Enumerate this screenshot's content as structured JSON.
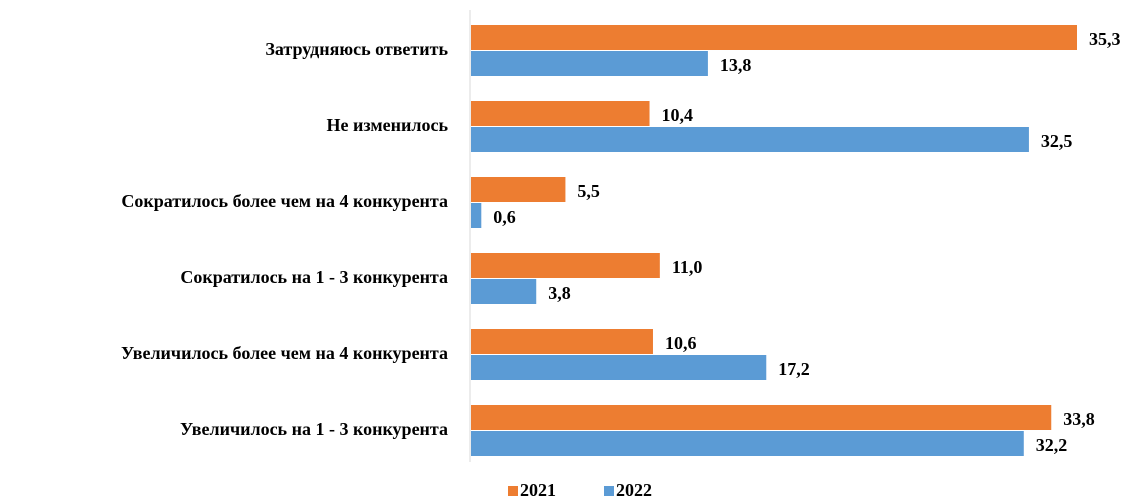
{
  "chart_data": {
    "type": "bar",
    "orientation": "horizontal",
    "categories": [
      "Затрудняюсь ответить",
      "Не изменилось",
      "Сократилось более чем на 4 конкурента",
      "Сократилось на 1 - 3 конкурента",
      "Увеличилось более чем на 4 конкурента",
      "Увеличилось на 1 - 3 конкурента"
    ],
    "series": [
      {
        "name": "2021",
        "color": "#ed7d31",
        "values": [
          35.3,
          10.4,
          5.5,
          11.0,
          10.6,
          33.8
        ],
        "value_labels": [
          "35,3",
          "10,4",
          "5,5",
          "11,0",
          "10,6",
          "33,8"
        ]
      },
      {
        "name": "2022",
        "color": "#5b9bd5",
        "values": [
          13.8,
          32.5,
          0.6,
          3.8,
          17.2,
          32.2
        ],
        "value_labels": [
          "13,8",
          "32,5",
          "0,6",
          "3,8",
          "17,2",
          "32,2"
        ]
      }
    ],
    "legend": "bottom"
  }
}
